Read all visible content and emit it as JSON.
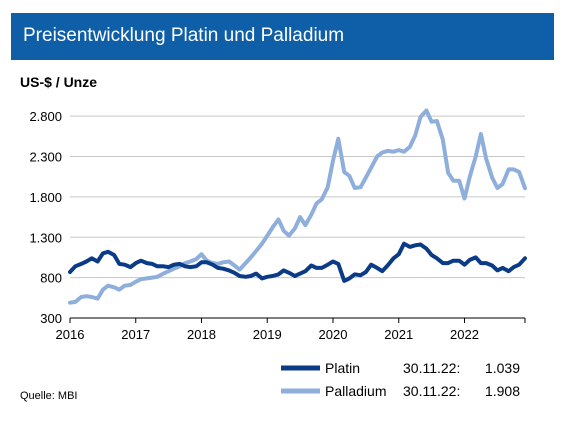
{
  "header": {
    "title": "Preisentwicklung Platin und Palladium"
  },
  "unit_label": "US-$ / Unze",
  "source": "Quelle: MBI",
  "colors": {
    "title_bar": "#0f5ea8",
    "platin": "#0b3a86",
    "palladium": "#8eaedc"
  },
  "chart_data": {
    "type": "line",
    "title": "Preisentwicklung Platin und Palladium",
    "ylabel": "US-$ / Unze",
    "xlabel": "",
    "ylim": [
      300,
      3000
    ],
    "xlim": [
      2016.0,
      2022.92
    ],
    "grid": "horizontal",
    "legend_position": "bottom-right",
    "y_ticks": [
      300,
      800,
      1300,
      1800,
      2300,
      2800
    ],
    "y_tick_labels": [
      "300",
      "800",
      "1.300",
      "1.800",
      "2.300",
      "2.800"
    ],
    "x_ticks": [
      2016,
      2017,
      2018,
      2019,
      2020,
      2021,
      2022
    ],
    "x_tick_labels": [
      "2016",
      "2017",
      "2018",
      "2019",
      "2020",
      "2021",
      "2022"
    ],
    "series": [
      {
        "name": "Platin",
        "date_label": "30.11.22:",
        "last_value_label": "1.039",
        "x": [
          2016.0,
          2016.08,
          2016.17,
          2016.25,
          2016.33,
          2016.42,
          2016.5,
          2016.58,
          2016.67,
          2016.75,
          2016.83,
          2016.92,
          2017.0,
          2017.08,
          2017.17,
          2017.25,
          2017.33,
          2017.42,
          2017.5,
          2017.58,
          2017.67,
          2017.75,
          2017.83,
          2017.92,
          2018.0,
          2018.08,
          2018.17,
          2018.25,
          2018.33,
          2018.42,
          2018.5,
          2018.58,
          2018.67,
          2018.75,
          2018.83,
          2018.92,
          2019.0,
          2019.08,
          2019.17,
          2019.25,
          2019.33,
          2019.42,
          2019.5,
          2019.58,
          2019.67,
          2019.75,
          2019.83,
          2019.92,
          2020.0,
          2020.08,
          2020.17,
          2020.25,
          2020.33,
          2020.42,
          2020.5,
          2020.58,
          2020.67,
          2020.75,
          2020.83,
          2020.92,
          2021.0,
          2021.08,
          2021.17,
          2021.25,
          2021.33,
          2021.42,
          2021.5,
          2021.58,
          2021.67,
          2021.75,
          2021.83,
          2021.92,
          2022.0,
          2022.08,
          2022.17,
          2022.25,
          2022.33,
          2022.42,
          2022.5,
          2022.58,
          2022.67,
          2022.75,
          2022.83,
          2022.92
        ],
        "values": [
          870,
          940,
          970,
          1000,
          1040,
          1000,
          1100,
          1120,
          1080,
          970,
          960,
          930,
          980,
          1010,
          980,
          970,
          940,
          940,
          930,
          960,
          970,
          940,
          930,
          940,
          990,
          990,
          960,
          920,
          910,
          890,
          860,
          820,
          810,
          820,
          850,
          790,
          810,
          820,
          840,
          890,
          860,
          820,
          850,
          880,
          950,
          920,
          920,
          960,
          1000,
          970,
          760,
          790,
          840,
          830,
          870,
          960,
          920,
          880,
          950,
          1040,
          1090,
          1220,
          1180,
          1200,
          1210,
          1160,
          1080,
          1040,
          980,
          980,
          1010,
          1010,
          960,
          1020,
          1050,
          980,
          980,
          950,
          890,
          920,
          880,
          930,
          960,
          1039
        ]
      },
      {
        "name": "Palladium",
        "date_label": "30.11.22:",
        "last_value_label": "1.908",
        "x": [
          2016.0,
          2016.08,
          2016.17,
          2016.25,
          2016.33,
          2016.42,
          2016.5,
          2016.58,
          2016.67,
          2016.75,
          2016.83,
          2016.92,
          2017.0,
          2017.08,
          2017.17,
          2017.25,
          2017.33,
          2017.42,
          2017.5,
          2017.58,
          2017.67,
          2017.75,
          2017.83,
          2017.92,
          2018.0,
          2018.08,
          2018.17,
          2018.25,
          2018.33,
          2018.42,
          2018.5,
          2018.58,
          2018.67,
          2018.75,
          2018.83,
          2018.92,
          2019.0,
          2019.08,
          2019.17,
          2019.25,
          2019.33,
          2019.42,
          2019.5,
          2019.58,
          2019.67,
          2019.75,
          2019.83,
          2019.92,
          2020.0,
          2020.08,
          2020.17,
          2020.25,
          2020.33,
          2020.42,
          2020.5,
          2020.58,
          2020.67,
          2020.75,
          2020.83,
          2020.92,
          2021.0,
          2021.08,
          2021.17,
          2021.25,
          2021.33,
          2021.42,
          2021.5,
          2021.58,
          2021.67,
          2021.75,
          2021.83,
          2021.92,
          2022.0,
          2022.08,
          2022.17,
          2022.25,
          2022.33,
          2022.42,
          2022.5,
          2022.58,
          2022.67,
          2022.75,
          2022.83,
          2022.92
        ],
        "values": [
          490,
          500,
          560,
          570,
          560,
          540,
          650,
          700,
          680,
          650,
          700,
          710,
          750,
          780,
          790,
          800,
          810,
          850,
          880,
          910,
          940,
          980,
          1000,
          1030,
          1090,
          1010,
          980,
          970,
          990,
          1000,
          950,
          900,
          980,
          1050,
          1130,
          1220,
          1320,
          1420,
          1520,
          1380,
          1320,
          1410,
          1550,
          1450,
          1580,
          1720,
          1770,
          1920,
          2250,
          2520,
          2110,
          2060,
          1910,
          1920,
          2040,
          2160,
          2300,
          2350,
          2370,
          2360,
          2380,
          2360,
          2420,
          2560,
          2790,
          2870,
          2730,
          2740,
          2510,
          2100,
          2000,
          2000,
          1780,
          2050,
          2300,
          2580,
          2270,
          2040,
          1910,
          1960,
          2140,
          2140,
          2110,
          1908
        ]
      }
    ]
  }
}
